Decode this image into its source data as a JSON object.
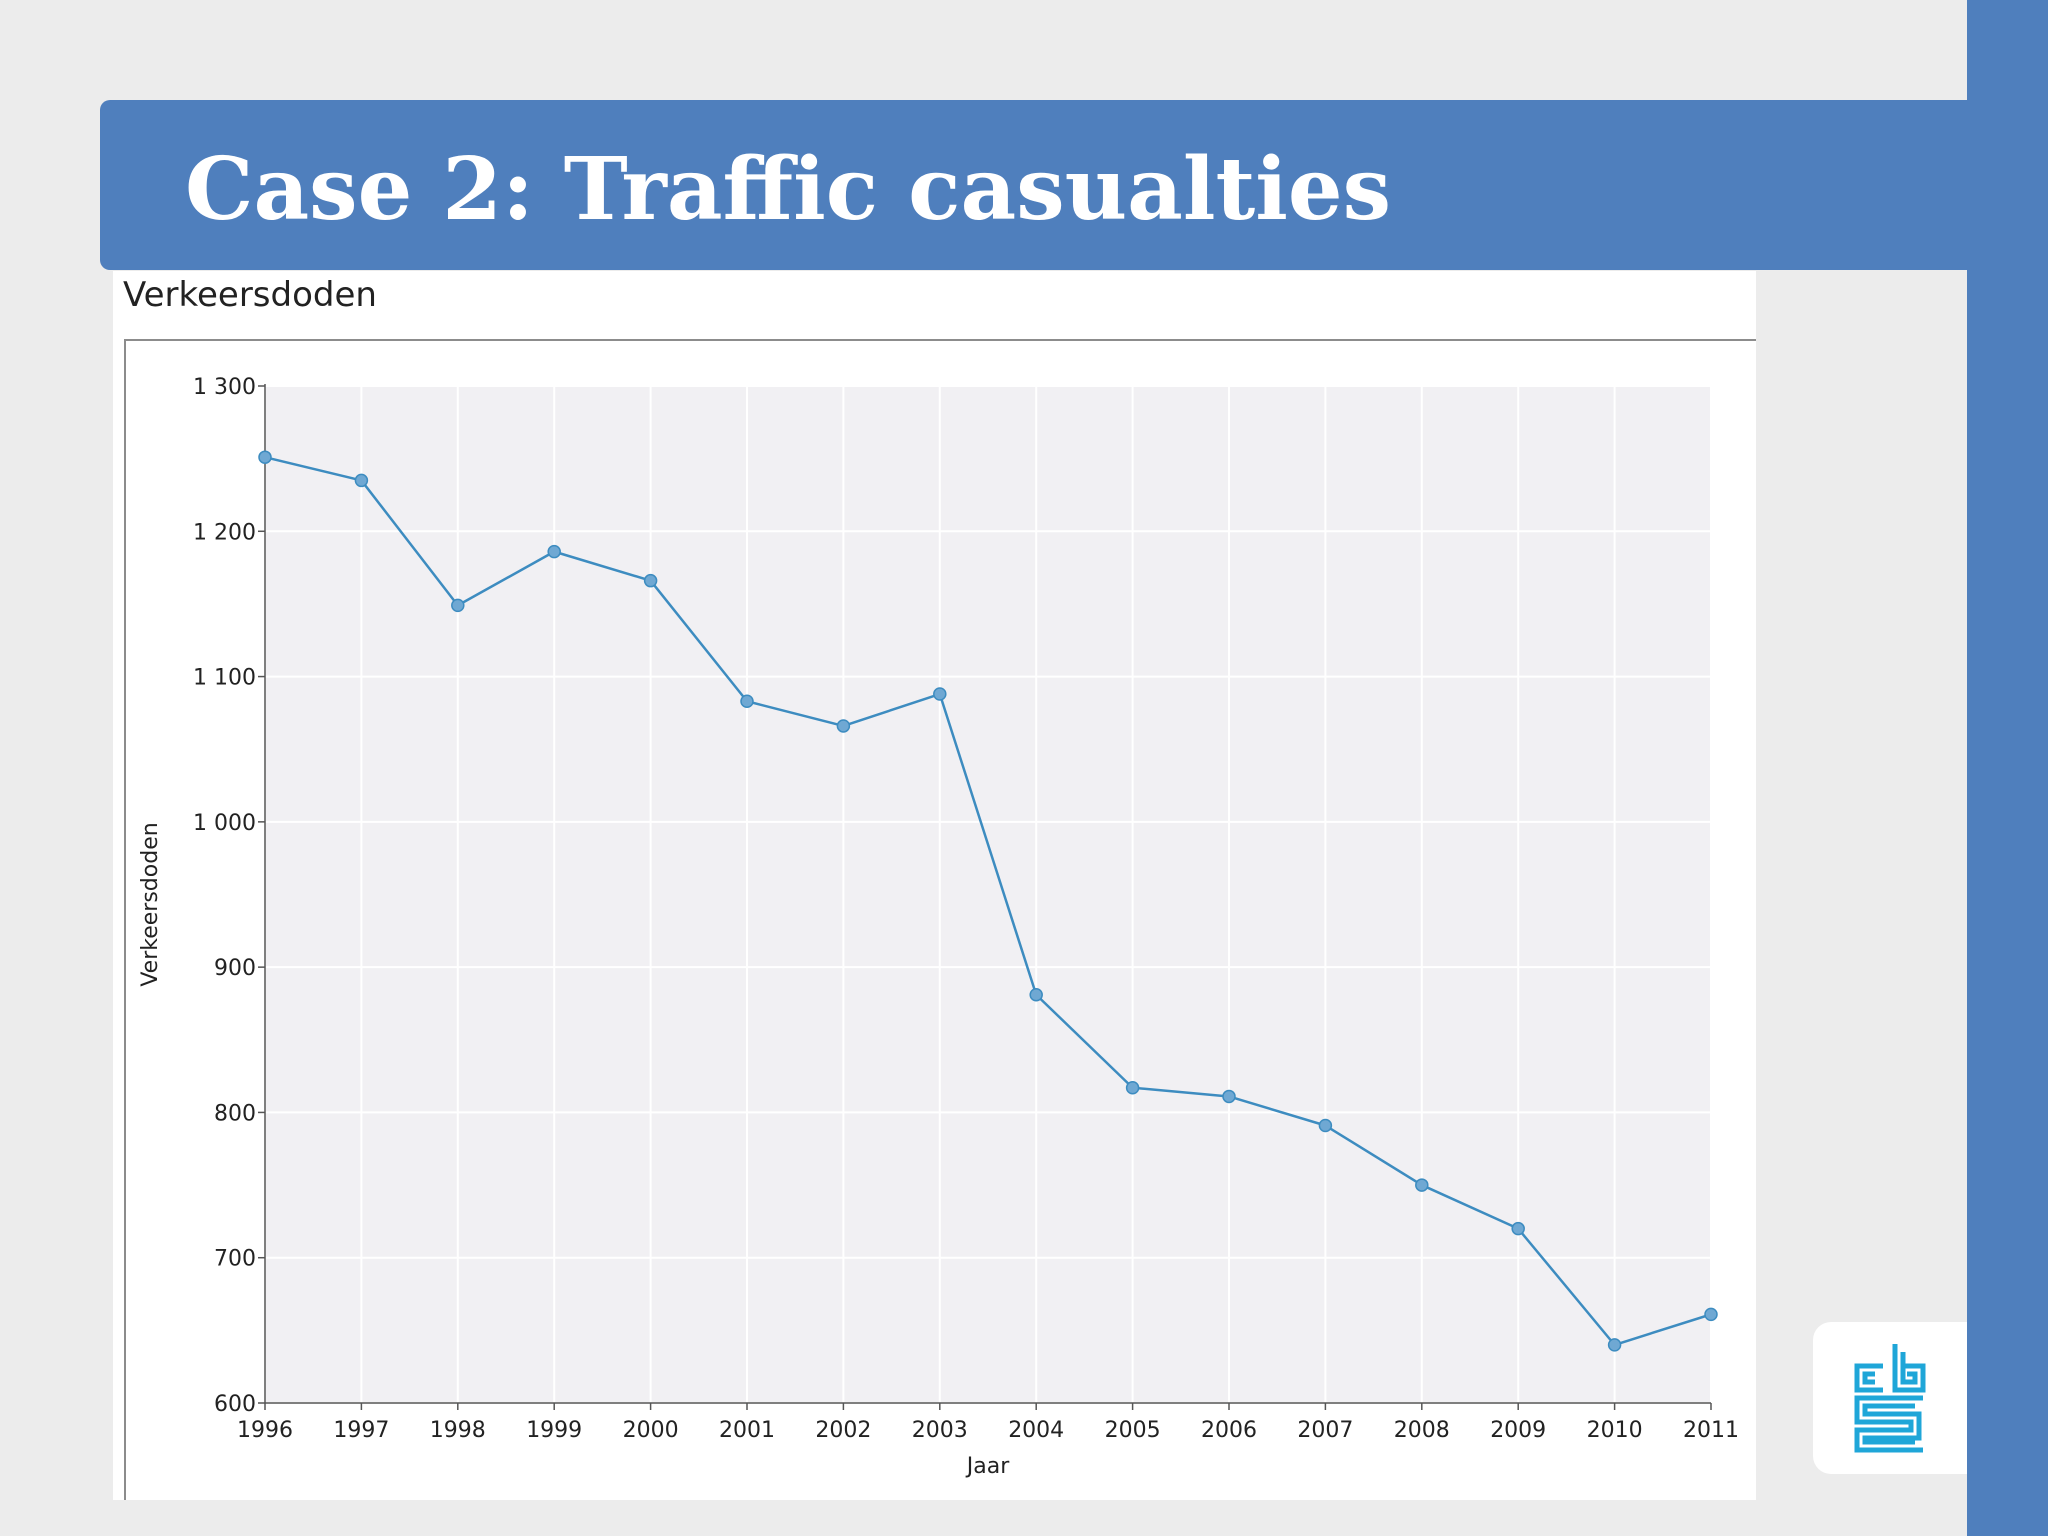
{
  "slide": {
    "title": "Case 2: Traffic casualties"
  },
  "colors": {
    "accent": "#4f7fbd",
    "line": "#3d8cc0",
    "plot_bg": "#f1f0f3",
    "logo": "#1fa6d8"
  },
  "logo": {
    "icon": "cbs-logo-icon"
  },
  "chart_data": {
    "type": "line",
    "title": "Verkeersdoden",
    "xlabel": "Jaar",
    "ylabel": "Verkeersdoden",
    "x": [
      1996,
      1997,
      1998,
      1999,
      2000,
      2001,
      2002,
      2003,
      2004,
      2005,
      2006,
      2007,
      2008,
      2009,
      2010,
      2011
    ],
    "x_tick_labels": [
      "1996",
      "1997",
      "1998",
      "1999",
      "2000",
      "2001",
      "2002",
      "2003",
      "2004",
      "2005",
      "2006",
      "2007",
      "2008",
      "2009",
      "2010",
      "2011"
    ],
    "series": [
      {
        "values": [
          1251,
          1235,
          1149,
          1186,
          1166,
          1083,
          1066,
          1088,
          881,
          817,
          811,
          791,
          750,
          720,
          640,
          661
        ]
      }
    ],
    "ylim": [
      600,
      1300
    ],
    "y_ticks": [
      600,
      700,
      800,
      900,
      1000,
      1100,
      1200,
      1300
    ],
    "y_tick_labels": [
      "600",
      "700",
      "800",
      "900",
      "1 000",
      "1 100",
      "1 200",
      "1 300"
    ],
    "grid": true,
    "legend": "none"
  }
}
